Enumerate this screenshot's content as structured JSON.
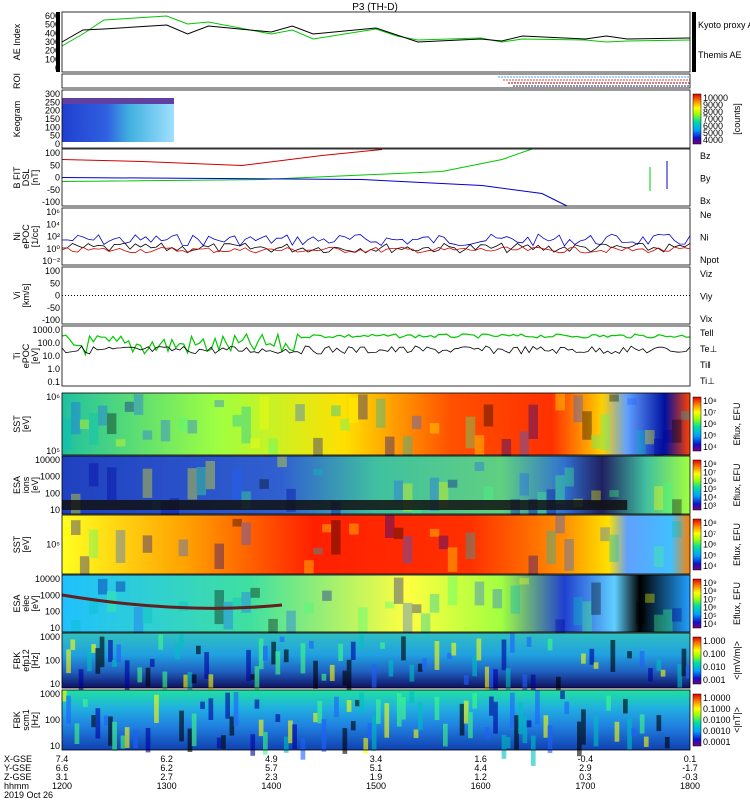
{
  "title": "P3 (TH-D)",
  "date_label": "2019 Oct 26",
  "ephemeris": {
    "labels": [
      "X-GSE",
      "Y-GSE",
      "Z-GSE",
      "hhmm"
    ],
    "columns": [
      {
        "x": "7.4",
        "y": "6.6",
        "z": "3.1",
        "t": "1200"
      },
      {
        "x": "6.2",
        "y": "6.2",
        "z": "2.7",
        "t": "1300"
      },
      {
        "x": "4.9",
        "y": "5.7",
        "z": "2.3",
        "t": "1400"
      },
      {
        "x": "3.4",
        "y": "5.1",
        "z": "1.9",
        "t": "1500"
      },
      {
        "x": "1.6",
        "y": "4.4",
        "z": "1.2",
        "t": "1600"
      },
      {
        "x": "-0.4",
        "y": "2.9",
        "z": "0.3",
        "t": "1700"
      },
      {
        "x": "0.1",
        "y": "-1.7",
        "z": "-0.3",
        "t": "1800"
      }
    ]
  },
  "chart_data": [
    {
      "type": "line",
      "id": "ae",
      "ylabel": "AE Index",
      "yticks": [
        "600",
        "500",
        "400",
        "300",
        "200",
        "100",
        "0"
      ],
      "ylim": [
        0,
        600
      ],
      "x": [
        1200,
        1220,
        1240,
        1300,
        1320,
        1340,
        1400,
        1420,
        1440,
        1500,
        1520,
        1540,
        1600,
        1620,
        1640,
        1700,
        1720,
        1740,
        1800
      ],
      "series": [
        {
          "name": "Kyoto proxy AE",
          "color": "#00c800",
          "values": [
            260,
            380,
            520,
            560,
            480,
            500,
            380,
            420,
            330,
            430,
            360,
            320,
            340,
            300,
            330,
            320,
            300,
            310,
            320
          ]
        },
        {
          "name": "Themis AE",
          "color": "#000000",
          "values": [
            300,
            420,
            430,
            470,
            380,
            460,
            400,
            460,
            380,
            440,
            370,
            300,
            330,
            310,
            360,
            330,
            360,
            330,
            340
          ]
        }
      ]
    },
    {
      "type": "bar",
      "id": "roi",
      "ylabel": "ROI"
    },
    {
      "type": "heatmap",
      "id": "keogram",
      "ylabel": "Keogram",
      "yticks": [
        "300",
        "250",
        "200",
        "150",
        "100",
        "50",
        "0"
      ],
      "colorbar": {
        "label": "[counts]",
        "ticks": [
          "10000",
          "9000",
          "8000",
          "7000",
          "6000",
          "5000",
          "4000"
        ]
      }
    },
    {
      "type": "line",
      "id": "bfit",
      "ylabel": "B FIT",
      "ylabel2": "DSL",
      "unit": "[nT]",
      "yticks": [
        "100",
        "50",
        "0",
        "-50",
        "-100"
      ],
      "series": [
        {
          "name": "Bz",
          "color": "#d00000"
        },
        {
          "name": "By",
          "color": "#00c800"
        },
        {
          "name": "Bx",
          "color": "#0000d0"
        }
      ]
    },
    {
      "type": "line",
      "id": "ni",
      "ylabel": "Ni",
      "ylabel2": "ePOC",
      "unit": "[1/cc]",
      "yticks": [
        "10⁶",
        "10⁴",
        "10²",
        "10⁰",
        "10⁻²"
      ],
      "series": [
        {
          "name": "Ne",
          "color": "#d00000"
        },
        {
          "name": "Ni",
          "color": "#000000"
        },
        {
          "name": "Npot",
          "color": "#0000d0"
        }
      ]
    },
    {
      "type": "line",
      "id": "vi",
      "ylabel": "Vi",
      "unit": "[km/s]",
      "yticks": [
        "100",
        "50",
        "0",
        "-50",
        "-100"
      ],
      "series": [
        {
          "name": "Viz",
          "color": "#d00000"
        },
        {
          "name": "Viy",
          "color": "#00c800"
        },
        {
          "name": "Vix",
          "color": "#0000d0"
        }
      ]
    },
    {
      "type": "line",
      "id": "ti",
      "ylabel": "Ti",
      "ylabel2": "ePOC",
      "unit": "[eV]",
      "yticks": [
        "1000.0",
        "100.0",
        "10.0",
        "1.0",
        "0.1"
      ],
      "series": [
        {
          "name": "Tell",
          "color": "#000000"
        },
        {
          "name": "Te⊥",
          "color": "#d00000"
        },
        {
          "name": "Ti‖",
          "color": "#00c800"
        },
        {
          "name": "Ti⊥",
          "color": "#0000d0"
        }
      ]
    },
    {
      "type": "heatmap",
      "id": "sst_i",
      "ylabel": "SST",
      "unit": "[eV]",
      "yticks": [
        "10⁶",
        "10⁵"
      ],
      "colorbar": {
        "label": "Eflux, EFU",
        "ticks": [
          "10⁸",
          "10⁷",
          "10⁶",
          "10⁵",
          "10⁴"
        ]
      }
    },
    {
      "type": "heatmap",
      "id": "esa_i",
      "ylabel": "ESA",
      "ylabel2": "ions",
      "unit": "[eV]",
      "yticks": [
        "10000",
        "1000",
        "100",
        "10"
      ],
      "colorbar": {
        "label": "Eflux, EFU",
        "ticks": [
          "10⁸",
          "10⁷",
          "10⁶",
          "10⁵",
          "10⁴",
          "10³"
        ]
      }
    },
    {
      "type": "heatmap",
      "id": "sst_e",
      "ylabel": "SST",
      "unit": "[eV]",
      "yticks": [
        "10⁵"
      ],
      "colorbar": {
        "label": "Eflux, EFU",
        "ticks": [
          "10⁸",
          "10⁷",
          "10⁶",
          "10⁵",
          "10⁴"
        ]
      }
    },
    {
      "type": "heatmap",
      "id": "esa_e",
      "ylabel": "ESA",
      "ylabel2": "elec",
      "unit": "[eV]",
      "yticks": [
        "10000",
        "1000",
        "100",
        "10"
      ],
      "colorbar": {
        "label": "Eflux, EFU",
        "ticks": [
          "10⁹",
          "10⁸",
          "10⁷",
          "10⁶",
          "10⁵",
          "10⁴"
        ]
      }
    },
    {
      "type": "heatmap",
      "id": "fbk_e",
      "ylabel": "FBK",
      "ylabel2": "efp12",
      "unit": "[Hz]",
      "yticks": [
        "1000",
        "100",
        "10"
      ],
      "colorbar": {
        "label": "<|mV/m|>",
        "ticks": [
          "1.000",
          "0.100",
          "0.010",
          "0.001"
        ]
      }
    },
    {
      "type": "heatmap",
      "id": "fbk_b",
      "ylabel": "FBK",
      "ylabel2": "scm1",
      "unit": "[Hz]",
      "yticks": [
        "1000",
        "100",
        "10"
      ],
      "colorbar": {
        "label": "<|nT|>",
        "ticks": [
          "1.0000",
          "0.1000",
          "0.0100",
          "0.0010",
          "0.0001"
        ]
      }
    }
  ]
}
